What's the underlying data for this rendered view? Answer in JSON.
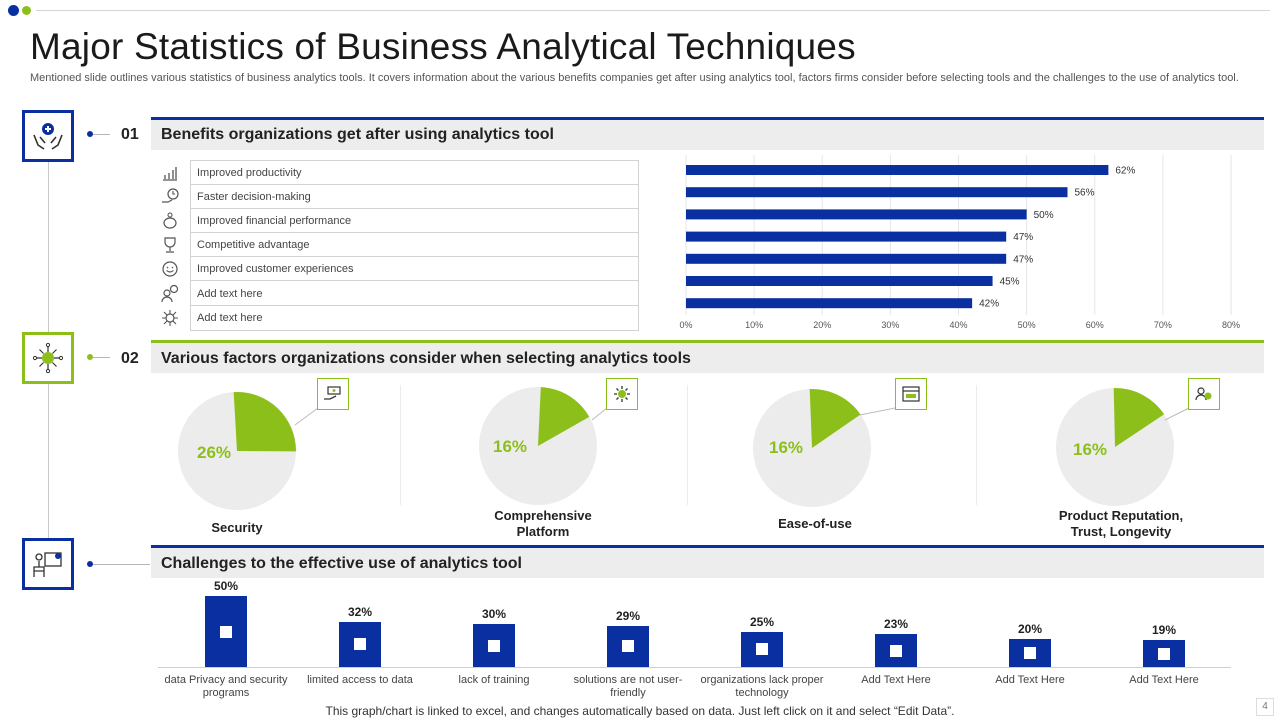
{
  "colors": {
    "blue": "#0a2fa0",
    "green": "#8dbf1b",
    "pie_bg": "#ececec"
  },
  "title": "Major Statistics of Business Analytical Techniques",
  "subtitle": "Mentioned slide outlines various statistics of business analytics tools. It covers information about the various benefits companies get after using analytics tool, factors firms consider before selecting tools and the challenges to the use of analytics tool.",
  "sections": [
    {
      "number": "01",
      "title": "Benefits organizations get after using analytics tool",
      "icon": "hands-medical-icon"
    },
    {
      "number": "02",
      "title": "Various factors organizations consider when selecting analytics tools",
      "icon": "network-globe-icon"
    },
    {
      "number": "",
      "title": "Challenges to the effective use of analytics tool",
      "icon": "presenter-icon"
    }
  ],
  "benefits": {
    "items": [
      {
        "label": "Improved productivity",
        "icon": "bar-chart-icon"
      },
      {
        "label": "Faster decision-making",
        "icon": "hand-clock-icon"
      },
      {
        "label": "Improved financial performance",
        "icon": "piggy-bank-icon"
      },
      {
        "label": "Competitive advantage",
        "icon": "trophy-icon"
      },
      {
        "label": "Improved customer experiences",
        "icon": "smiley-icon"
      },
      {
        "label": "Add text here",
        "icon": "person-gear-icon"
      },
      {
        "label": "Add text here",
        "icon": "virus-icon"
      }
    ]
  },
  "factors": [
    {
      "label": "Security",
      "percent_label": "26%",
      "value": 26,
      "icon": "money-hand-icon"
    },
    {
      "label": "Comprehensive Platform",
      "percent_label": "16%",
      "value": 16,
      "icon": "gear-icon"
    },
    {
      "label": "Ease-of-use",
      "percent_label": "16%",
      "value": 16,
      "icon": "browser-window-icon"
    },
    {
      "label": "Product Reputation, Trust, Longevity",
      "percent_label": "16%",
      "value": 16,
      "icon": "people-badge-icon"
    }
  ],
  "chart_data": [
    {
      "type": "bar",
      "orientation": "horizontal",
      "title": "Benefits organizations get after using analytics tool",
      "categories": [
        "Improved productivity",
        "Faster decision-making",
        "Improved financial performance",
        "Competitive advantage",
        "Improved customer experiences",
        "Add text here",
        "Add text here"
      ],
      "values": [
        62,
        56,
        50,
        47,
        47,
        45,
        42
      ],
      "value_labels": [
        "62%",
        "56%",
        "50%",
        "47%",
        "47%",
        "45%",
        "42%"
      ],
      "xlim": [
        0,
        80
      ],
      "x_ticks": [
        "0%",
        "10%",
        "20%",
        "30%",
        "40%",
        "50%",
        "60%",
        "70%",
        "80%"
      ],
      "grid": true
    },
    {
      "type": "pie",
      "title": "Various factors organizations consider when selecting analytics tools",
      "categories": [
        "Security",
        "Comprehensive Platform",
        "Ease-of-use",
        "Product Reputation, Trust, Longevity"
      ],
      "values": [
        26,
        16,
        16,
        16
      ]
    },
    {
      "type": "bar",
      "orientation": "vertical",
      "title": "Challenges to the effective use of analytics tool",
      "categories": [
        "data Privacy and security programs",
        "limited access to data",
        "lack of training",
        "solutions are not user-friendly",
        "organizations lack proper technology",
        "Add Text Here",
        "Add Text Here",
        "Add Text Here"
      ],
      "values": [
        50,
        32,
        30,
        29,
        25,
        23,
        20,
        19
      ],
      "value_labels": [
        "50%",
        "32%",
        "30%",
        "29%",
        "25%",
        "23%",
        "20%",
        "19%"
      ],
      "ylim": [
        0,
        50
      ]
    }
  ],
  "footer": "This graph/chart is linked to excel, and changes automatically based on data. Just left click on it and select “Edit Data”.",
  "page_number": "4"
}
